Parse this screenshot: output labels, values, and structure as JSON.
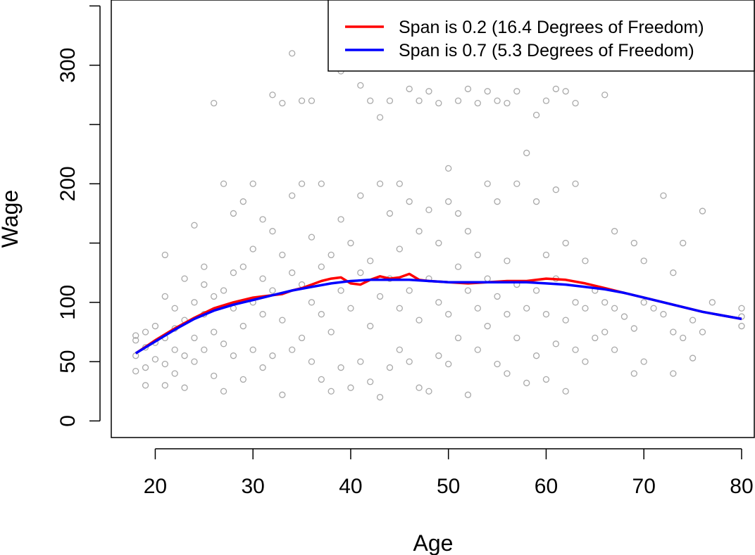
{
  "chart_data": {
    "type": "scatter",
    "xlabel": "Age",
    "ylabel": "Wage",
    "xlim": [
      15.5,
      81.3
    ],
    "ylim": [
      -14,
      355
    ],
    "x_ticks": [
      20,
      30,
      40,
      50,
      60,
      70,
      80
    ],
    "y_ticks": [
      0,
      50,
      100,
      200,
      300
    ],
    "y_tick_marks": [
      0,
      50,
      100,
      150,
      200,
      250,
      300,
      350
    ],
    "x_tick_labels": [
      "20",
      "30",
      "40",
      "50",
      "60",
      "70",
      "80"
    ],
    "y_tick_labels": [
      "0",
      "50",
      "100",
      "200",
      "300"
    ],
    "grid": false,
    "legend": {
      "placement": "top-right",
      "entries": [
        {
          "label": "Span is 0.2  (16.4 Degrees of Freedom)",
          "color": "#ff0000"
        },
        {
          "label": "Span is 0.7  (5.3 Degrees of Freedom)",
          "color": "#0000ff"
        }
      ]
    },
    "scatter_color": "#a9a9a9",
    "series": [
      {
        "color": "#ff0000",
        "x": [
          18,
          20,
          22,
          24,
          26,
          28,
          30,
          31,
          32,
          33,
          34,
          35,
          36,
          37,
          38,
          39,
          40,
          41,
          42,
          43,
          44,
          45,
          46,
          47,
          48,
          50,
          52,
          54,
          56,
          58,
          60,
          62,
          64,
          66,
          68,
          70,
          72,
          74,
          76,
          78,
          80
        ],
        "y": [
          57,
          68,
          78,
          87,
          95,
          100,
          104,
          105,
          106,
          107,
          110,
          112,
          115,
          118,
          120,
          121,
          116,
          115,
          119,
          122,
          120,
          121,
          124,
          119,
          118,
          117,
          116,
          117,
          118,
          118,
          120,
          119,
          116,
          112,
          108,
          104,
          100,
          96,
          92,
          89,
          86
        ]
      },
      {
        "color": "#0000ff",
        "x": [
          18,
          20,
          22,
          24,
          26,
          28,
          30,
          32,
          34,
          36,
          38,
          40,
          42,
          44,
          46,
          48,
          50,
          52,
          54,
          56,
          58,
          60,
          62,
          64,
          66,
          68,
          70,
          72,
          74,
          76,
          78,
          80
        ],
        "y": [
          57,
          67,
          77,
          86,
          93,
          98,
          102,
          106,
          110,
          113,
          116,
          118,
          119,
          119,
          119,
          118,
          117,
          117,
          117,
          117,
          117,
          116,
          115,
          113,
          111,
          108,
          104,
          100,
          96,
          92,
          89,
          86
        ]
      }
    ],
    "scatter_sample": [
      [
        18,
        42
      ],
      [
        18,
        55
      ],
      [
        18,
        68
      ],
      [
        18,
        72
      ],
      [
        19,
        30
      ],
      [
        19,
        45
      ],
      [
        19,
        62
      ],
      [
        19,
        75
      ],
      [
        20,
        52
      ],
      [
        20,
        66
      ],
      [
        20,
        80
      ],
      [
        21,
        30
      ],
      [
        21,
        48
      ],
      [
        21,
        70
      ],
      [
        21,
        105
      ],
      [
        21,
        140
      ],
      [
        22,
        40
      ],
      [
        22,
        60
      ],
      [
        22,
        78
      ],
      [
        22,
        95
      ],
      [
        23,
        28
      ],
      [
        23,
        55
      ],
      [
        23,
        85
      ],
      [
        23,
        120
      ],
      [
        24,
        50
      ],
      [
        24,
        70
      ],
      [
        24,
        100
      ],
      [
        24,
        165
      ],
      [
        25,
        60
      ],
      [
        25,
        90
      ],
      [
        25,
        115
      ],
      [
        25,
        130
      ],
      [
        26,
        38
      ],
      [
        26,
        75
      ],
      [
        26,
        105
      ],
      [
        26,
        268
      ],
      [
        27,
        25
      ],
      [
        27,
        65
      ],
      [
        27,
        110
      ],
      [
        27,
        200
      ],
      [
        28,
        55
      ],
      [
        28,
        95
      ],
      [
        28,
        125
      ],
      [
        28,
        175
      ],
      [
        29,
        35
      ],
      [
        29,
        80
      ],
      [
        29,
        130
      ],
      [
        29,
        185
      ],
      [
        30,
        60
      ],
      [
        30,
        100
      ],
      [
        30,
        145
      ],
      [
        30,
        200
      ],
      [
        31,
        45
      ],
      [
        31,
        90
      ],
      [
        31,
        120
      ],
      [
        31,
        170
      ],
      [
        32,
        55
      ],
      [
        32,
        110
      ],
      [
        32,
        160
      ],
      [
        32,
        275
      ],
      [
        33,
        22
      ],
      [
        33,
        85
      ],
      [
        33,
        140
      ],
      [
        33,
        268
      ],
      [
        34,
        60
      ],
      [
        34,
        125
      ],
      [
        34,
        190
      ],
      [
        34,
        310
      ],
      [
        35,
        70
      ],
      [
        35,
        115
      ],
      [
        35,
        200
      ],
      [
        35,
        270
      ],
      [
        36,
        50
      ],
      [
        36,
        100
      ],
      [
        36,
        155
      ],
      [
        36,
        270
      ],
      [
        37,
        35
      ],
      [
        37,
        90
      ],
      [
        37,
        130
      ],
      [
        37,
        200
      ],
      [
        38,
        25
      ],
      [
        38,
        75
      ],
      [
        38,
        140
      ],
      [
        38,
        315
      ],
      [
        39,
        45
      ],
      [
        39,
        110
      ],
      [
        39,
        170
      ],
      [
        39,
        295
      ],
      [
        40,
        28
      ],
      [
        40,
        95
      ],
      [
        40,
        150
      ],
      [
        40,
        300
      ],
      [
        41,
        50
      ],
      [
        41,
        125
      ],
      [
        41,
        190
      ],
      [
        41,
        283
      ],
      [
        42,
        33
      ],
      [
        42,
        80
      ],
      [
        42,
        135
      ],
      [
        42,
        270
      ],
      [
        43,
        20
      ],
      [
        43,
        105
      ],
      [
        43,
        200
      ],
      [
        43,
        256
      ],
      [
        44,
        45
      ],
      [
        44,
        120
      ],
      [
        44,
        175
      ],
      [
        44,
        270
      ],
      [
        45,
        60
      ],
      [
        45,
        95
      ],
      [
        45,
        145
      ],
      [
        45,
        200
      ],
      [
        46,
        50
      ],
      [
        46,
        110
      ],
      [
        46,
        185
      ],
      [
        46,
        280
      ],
      [
        47,
        28
      ],
      [
        47,
        85
      ],
      [
        47,
        160
      ],
      [
        47,
        270
      ],
      [
        48,
        25
      ],
      [
        48,
        120
      ],
      [
        48,
        178
      ],
      [
        48,
        278
      ],
      [
        49,
        55
      ],
      [
        49,
        100
      ],
      [
        49,
        150
      ],
      [
        49,
        268
      ],
      [
        50,
        48
      ],
      [
        50,
        90
      ],
      [
        50,
        185
      ],
      [
        50,
        213
      ],
      [
        51,
        70
      ],
      [
        51,
        130
      ],
      [
        51,
        175
      ],
      [
        51,
        270
      ],
      [
        52,
        22
      ],
      [
        52,
        110
      ],
      [
        52,
        160
      ],
      [
        52,
        280
      ],
      [
        53,
        60
      ],
      [
        53,
        95
      ],
      [
        53,
        140
      ],
      [
        53,
        268
      ],
      [
        54,
        80
      ],
      [
        54,
        120
      ],
      [
        54,
        200
      ],
      [
        54,
        278
      ],
      [
        55,
        48
      ],
      [
        55,
        105
      ],
      [
        55,
        185
      ],
      [
        55,
        270
      ],
      [
        56,
        40
      ],
      [
        56,
        90
      ],
      [
        56,
        135
      ],
      [
        56,
        268
      ],
      [
        57,
        70
      ],
      [
        57,
        115
      ],
      [
        57,
        200
      ],
      [
        57,
        278
      ],
      [
        58,
        32
      ],
      [
        58,
        95
      ],
      [
        58,
        226
      ],
      [
        58,
        312
      ],
      [
        59,
        55
      ],
      [
        59,
        110
      ],
      [
        59,
        185
      ],
      [
        59,
        258
      ],
      [
        60,
        35
      ],
      [
        60,
        90
      ],
      [
        60,
        140
      ],
      [
        60,
        270
      ],
      [
        61,
        65
      ],
      [
        61,
        120
      ],
      [
        61,
        195
      ],
      [
        61,
        280
      ],
      [
        62,
        25
      ],
      [
        62,
        85
      ],
      [
        62,
        150
      ],
      [
        62,
        278
      ],
      [
        63,
        60
      ],
      [
        63,
        100
      ],
      [
        63,
        200
      ],
      [
        63,
        268
      ],
      [
        64,
        50
      ],
      [
        64,
        95
      ],
      [
        64,
        135
      ],
      [
        65,
        70
      ],
      [
        65,
        110
      ],
      [
        66,
        75
      ],
      [
        66,
        100
      ],
      [
        66,
        275
      ],
      [
        67,
        60
      ],
      [
        67,
        95
      ],
      [
        67,
        160
      ],
      [
        68,
        88
      ],
      [
        69,
        40
      ],
      [
        69,
        78
      ],
      [
        69,
        150
      ],
      [
        70,
        50
      ],
      [
        70,
        100
      ],
      [
        70,
        135
      ],
      [
        71,
        95
      ],
      [
        72,
        90
      ],
      [
        72,
        190
      ],
      [
        73,
        40
      ],
      [
        73,
        75
      ],
      [
        73,
        125
      ],
      [
        74,
        70
      ],
      [
        74,
        150
      ],
      [
        75,
        53
      ],
      [
        75,
        85
      ],
      [
        76,
        75
      ],
      [
        76,
        177
      ],
      [
        77,
        100
      ],
      [
        80,
        80
      ],
      [
        80,
        88
      ],
      [
        80,
        95
      ]
    ]
  }
}
